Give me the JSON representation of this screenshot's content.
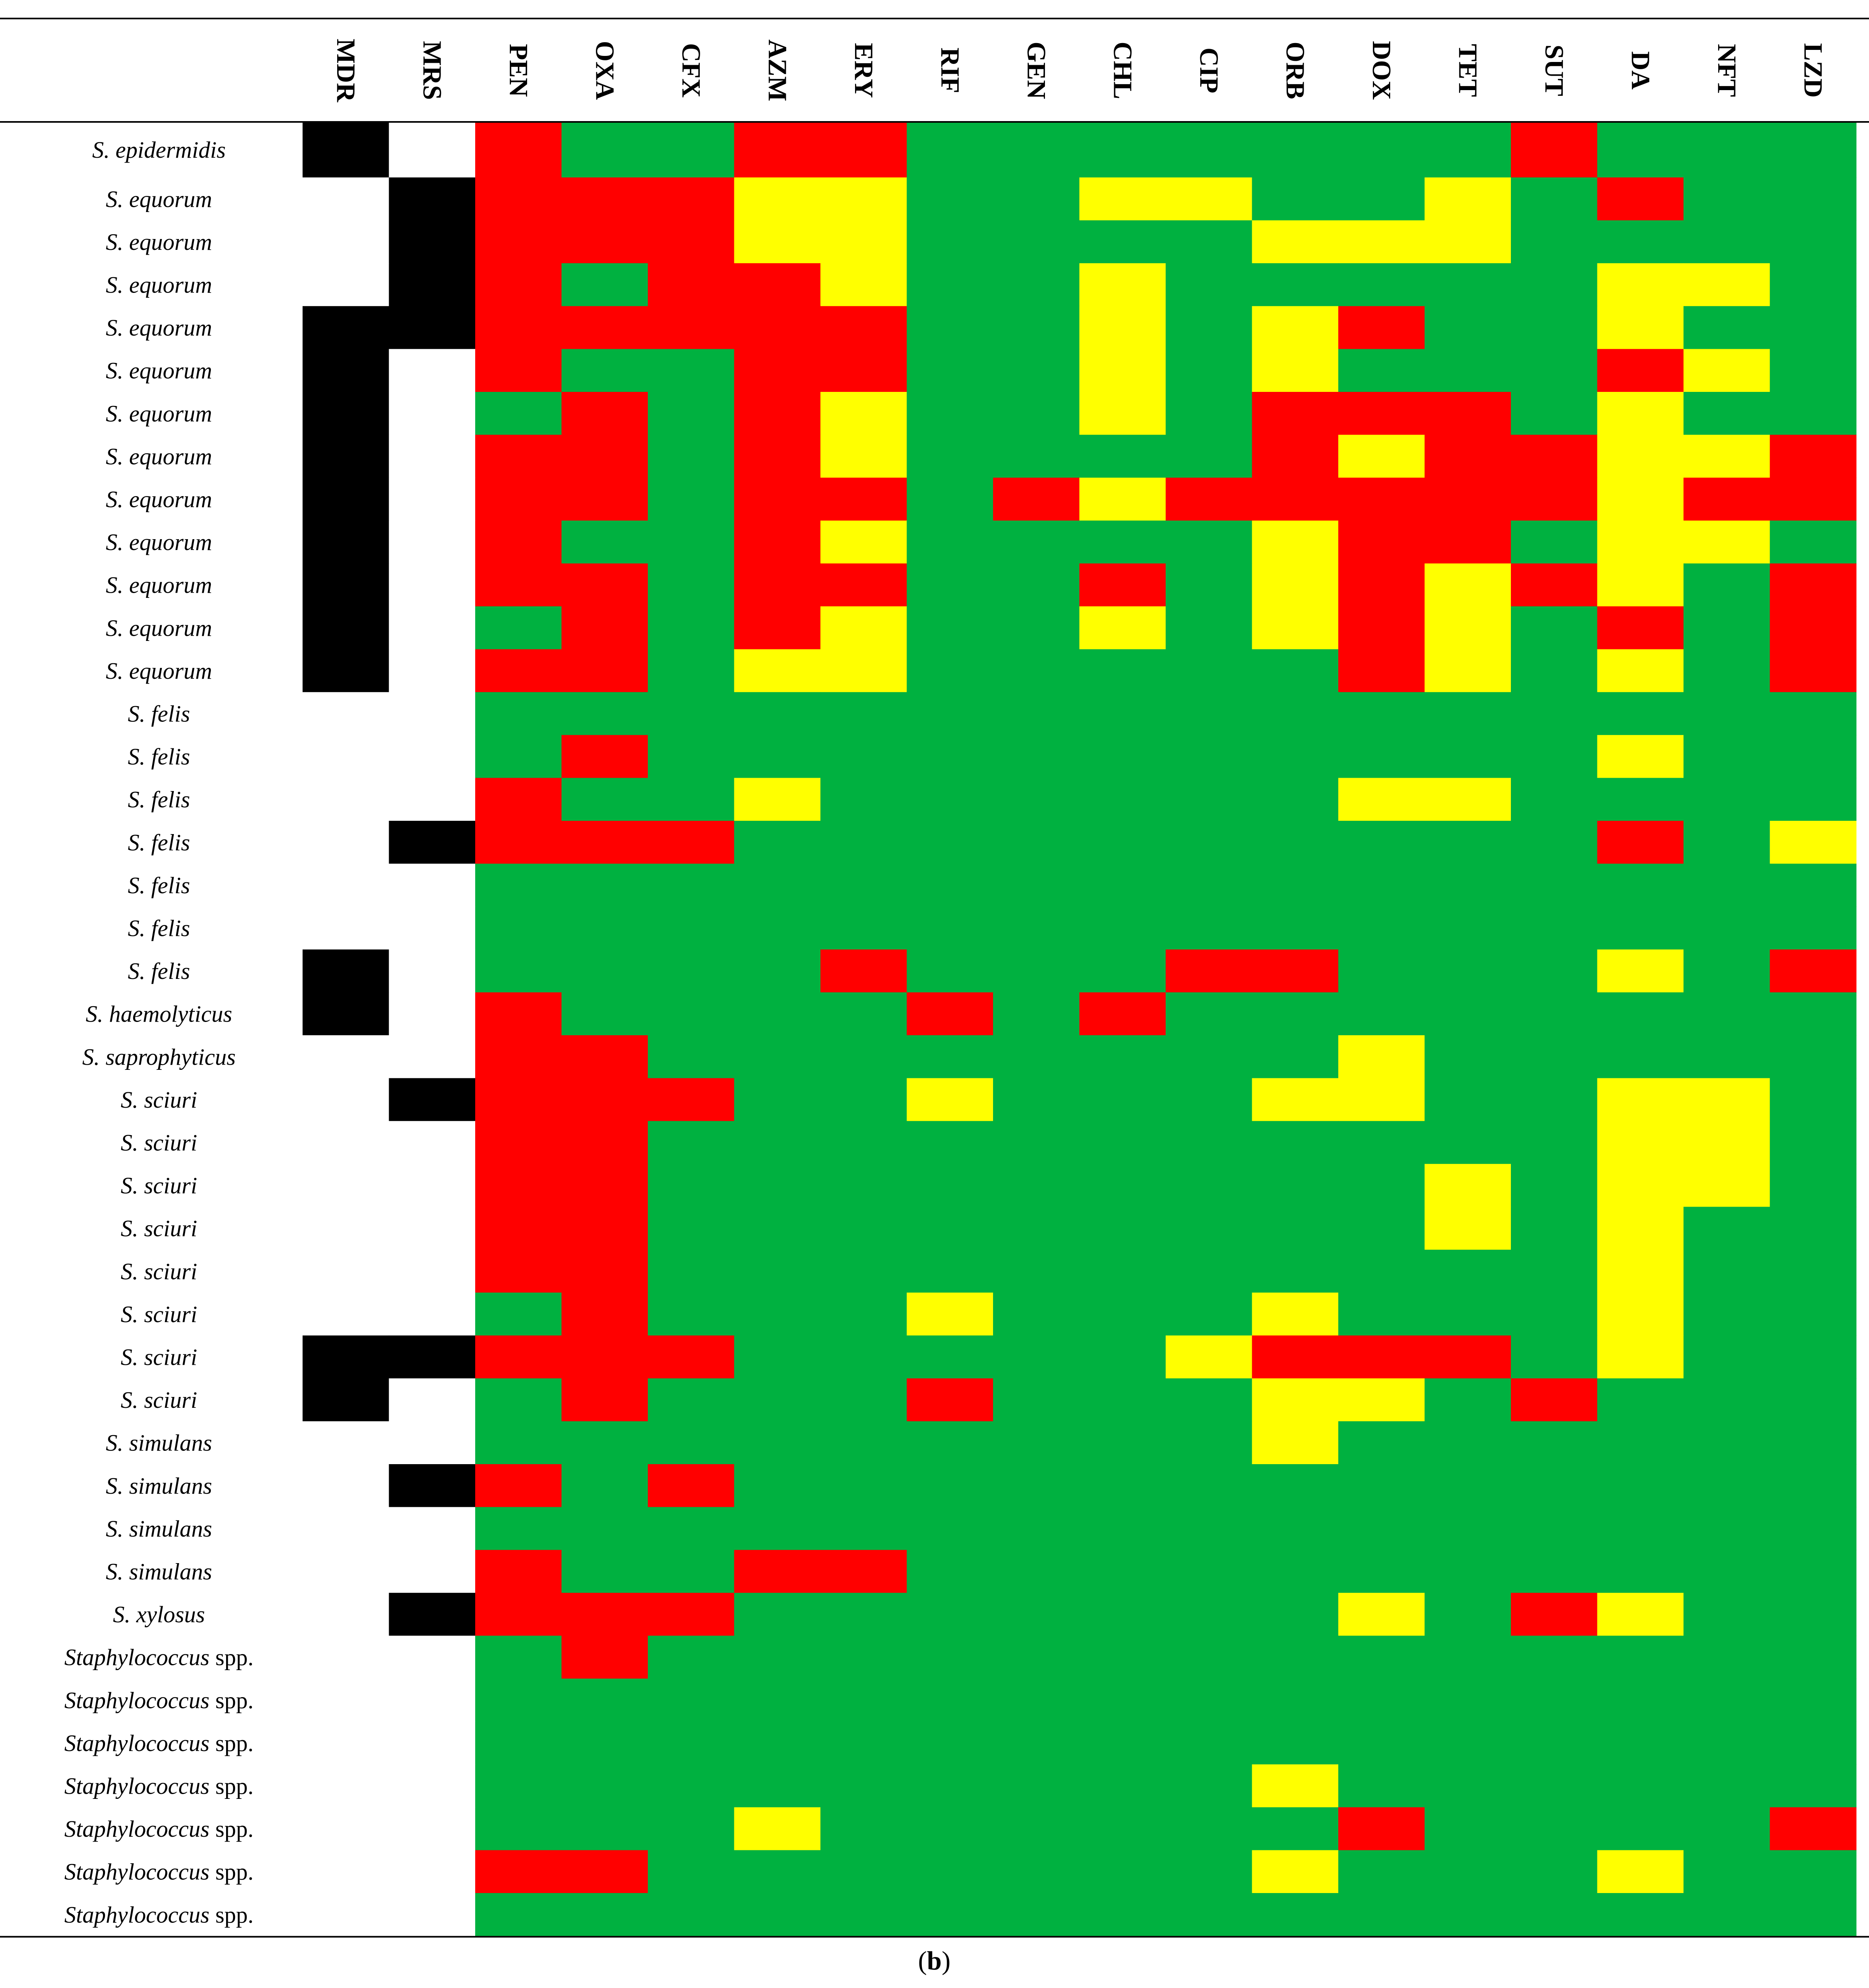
{
  "chart_data": {
    "type": "heatmap",
    "caption": {
      "open": "(",
      "letter": "b",
      "close": ")"
    },
    "columns": [
      "MDR",
      "MRS",
      "PEN",
      "OXA",
      "CFX",
      "AZM",
      "ERY",
      "RIF",
      "GEN",
      "CHL",
      "CIP",
      "ORB",
      "DOX",
      "TET",
      "SUT",
      "DA",
      "NFT",
      "LZD"
    ],
    "rows": [
      {
        "italic": "S. epidermidis",
        "suffix": ""
      },
      {
        "italic": "S. equorum",
        "suffix": ""
      },
      {
        "italic": "S. equorum",
        "suffix": ""
      },
      {
        "italic": "S. equorum",
        "suffix": ""
      },
      {
        "italic": "S. equorum",
        "suffix": ""
      },
      {
        "italic": "S. equorum",
        "suffix": ""
      },
      {
        "italic": "S. equorum",
        "suffix": ""
      },
      {
        "italic": "S. equorum",
        "suffix": ""
      },
      {
        "italic": "S. equorum",
        "suffix": ""
      },
      {
        "italic": "S. equorum",
        "suffix": ""
      },
      {
        "italic": "S. equorum",
        "suffix": ""
      },
      {
        "italic": "S. equorum",
        "suffix": ""
      },
      {
        "italic": "S. equorum",
        "suffix": ""
      },
      {
        "italic": "S. felis",
        "suffix": ""
      },
      {
        "italic": "S. felis",
        "suffix": ""
      },
      {
        "italic": "S. felis",
        "suffix": ""
      },
      {
        "italic": "S. felis",
        "suffix": ""
      },
      {
        "italic": "S. felis",
        "suffix": ""
      },
      {
        "italic": "S. felis",
        "suffix": ""
      },
      {
        "italic": "S. felis",
        "suffix": ""
      },
      {
        "italic": "S. haemolyticus",
        "suffix": ""
      },
      {
        "italic": "S. saprophyticus",
        "suffix": ""
      },
      {
        "italic": "S. sciuri",
        "suffix": ""
      },
      {
        "italic": "S. sciuri",
        "suffix": ""
      },
      {
        "italic": "S. sciuri",
        "suffix": ""
      },
      {
        "italic": "S. sciuri",
        "suffix": ""
      },
      {
        "italic": "S. sciuri",
        "suffix": ""
      },
      {
        "italic": "S. sciuri",
        "suffix": ""
      },
      {
        "italic": "S. sciuri",
        "suffix": ""
      },
      {
        "italic": "S. sciuri",
        "suffix": ""
      },
      {
        "italic": "S. simulans",
        "suffix": ""
      },
      {
        "italic": "S. simulans",
        "suffix": ""
      },
      {
        "italic": "S. simulans",
        "suffix": ""
      },
      {
        "italic": "S. simulans",
        "suffix": ""
      },
      {
        "italic": "S. xylosus",
        "suffix": ""
      },
      {
        "italic": "Staphylococcus",
        "suffix": " spp."
      },
      {
        "italic": "Staphylococcus",
        "suffix": " spp."
      },
      {
        "italic": "Staphylococcus",
        "suffix": " spp."
      },
      {
        "italic": "Staphylococcus",
        "suffix": " spp."
      },
      {
        "italic": "Staphylococcus",
        "suffix": " spp."
      },
      {
        "italic": "Staphylococcus",
        "suffix": " spp."
      },
      {
        "italic": "Staphylococcus",
        "suffix": " spp."
      }
    ],
    "legend_key": {
      "B": "black",
      "W": "white",
      "R": "red",
      "Y": "yellow",
      "G": "green"
    },
    "colors": {
      "B": "#000000",
      "W": "#ffffff",
      "R": "#ff0000",
      "Y": "#ffff00",
      "G": "#00b140"
    },
    "matrix": [
      [
        "B",
        "W",
        "R",
        "G",
        "G",
        "R",
        "R",
        "G",
        "G",
        "G",
        "G",
        "G",
        "G",
        "G",
        "R",
        "G",
        "G",
        "G"
      ],
      [
        "W",
        "B",
        "R",
        "R",
        "R",
        "Y",
        "Y",
        "G",
        "G",
        "Y",
        "Y",
        "G",
        "G",
        "Y",
        "G",
        "R",
        "G",
        "G"
      ],
      [
        "W",
        "B",
        "R",
        "R",
        "R",
        "Y",
        "Y",
        "G",
        "G",
        "G",
        "G",
        "Y",
        "Y",
        "Y",
        "G",
        "G",
        "G",
        "G"
      ],
      [
        "W",
        "B",
        "R",
        "G",
        "R",
        "R",
        "Y",
        "G",
        "G",
        "Y",
        "G",
        "G",
        "G",
        "G",
        "G",
        "Y",
        "Y",
        "G"
      ],
      [
        "B",
        "B",
        "R",
        "R",
        "R",
        "R",
        "R",
        "G",
        "G",
        "Y",
        "G",
        "Y",
        "R",
        "G",
        "G",
        "Y",
        "G",
        "G"
      ],
      [
        "B",
        "W",
        "R",
        "G",
        "G",
        "R",
        "R",
        "G",
        "G",
        "Y",
        "G",
        "Y",
        "G",
        "G",
        "G",
        "R",
        "Y",
        "G"
      ],
      [
        "B",
        "W",
        "G",
        "R",
        "G",
        "R",
        "Y",
        "G",
        "G",
        "Y",
        "G",
        "R",
        "R",
        "R",
        "G",
        "Y",
        "G",
        "G"
      ],
      [
        "B",
        "W",
        "R",
        "R",
        "G",
        "R",
        "Y",
        "G",
        "G",
        "G",
        "G",
        "R",
        "Y",
        "R",
        "R",
        "Y",
        "Y",
        "R"
      ],
      [
        "B",
        "W",
        "R",
        "R",
        "G",
        "R",
        "R",
        "G",
        "R",
        "Y",
        "R",
        "R",
        "R",
        "R",
        "R",
        "Y",
        "R",
        "R"
      ],
      [
        "B",
        "W",
        "R",
        "G",
        "G",
        "R",
        "Y",
        "G",
        "G",
        "G",
        "G",
        "Y",
        "R",
        "R",
        "G",
        "Y",
        "Y",
        "G"
      ],
      [
        "B",
        "W",
        "R",
        "R",
        "G",
        "R",
        "R",
        "G",
        "G",
        "R",
        "G",
        "Y",
        "R",
        "Y",
        "R",
        "Y",
        "G",
        "R"
      ],
      [
        "B",
        "W",
        "G",
        "R",
        "G",
        "R",
        "Y",
        "G",
        "G",
        "Y",
        "G",
        "Y",
        "R",
        "Y",
        "G",
        "R",
        "G",
        "R"
      ],
      [
        "B",
        "W",
        "R",
        "R",
        "G",
        "Y",
        "Y",
        "G",
        "G",
        "G",
        "G",
        "G",
        "R",
        "Y",
        "G",
        "Y",
        "G",
        "R"
      ],
      [
        "W",
        "W",
        "G",
        "G",
        "G",
        "G",
        "G",
        "G",
        "G",
        "G",
        "G",
        "G",
        "G",
        "G",
        "G",
        "G",
        "G",
        "G"
      ],
      [
        "W",
        "W",
        "G",
        "R",
        "G",
        "G",
        "G",
        "G",
        "G",
        "G",
        "G",
        "G",
        "G",
        "G",
        "G",
        "Y",
        "G",
        "G"
      ],
      [
        "W",
        "W",
        "R",
        "G",
        "G",
        "Y",
        "G",
        "G",
        "G",
        "G",
        "G",
        "G",
        "Y",
        "Y",
        "G",
        "G",
        "G",
        "G"
      ],
      [
        "W",
        "B",
        "R",
        "R",
        "R",
        "G",
        "G",
        "G",
        "G",
        "G",
        "G",
        "G",
        "G",
        "G",
        "G",
        "R",
        "G",
        "Y"
      ],
      [
        "W",
        "W",
        "G",
        "G",
        "G",
        "G",
        "G",
        "G",
        "G",
        "G",
        "G",
        "G",
        "G",
        "G",
        "G",
        "G",
        "G",
        "G"
      ],
      [
        "W",
        "W",
        "G",
        "G",
        "G",
        "G",
        "G",
        "G",
        "G",
        "G",
        "G",
        "G",
        "G",
        "G",
        "G",
        "G",
        "G",
        "G"
      ],
      [
        "B",
        "W",
        "G",
        "G",
        "G",
        "G",
        "R",
        "G",
        "G",
        "G",
        "R",
        "R",
        "G",
        "G",
        "G",
        "Y",
        "G",
        "R"
      ],
      [
        "B",
        "W",
        "R",
        "G",
        "G",
        "G",
        "G",
        "R",
        "G",
        "R",
        "G",
        "G",
        "G",
        "G",
        "G",
        "G",
        "G",
        "G"
      ],
      [
        "W",
        "W",
        "R",
        "R",
        "G",
        "G",
        "G",
        "G",
        "G",
        "G",
        "G",
        "G",
        "Y",
        "G",
        "G",
        "G",
        "G",
        "G"
      ],
      [
        "W",
        "B",
        "R",
        "R",
        "R",
        "G",
        "G",
        "Y",
        "G",
        "G",
        "G",
        "Y",
        "Y",
        "G",
        "G",
        "Y",
        "Y",
        "G"
      ],
      [
        "W",
        "W",
        "R",
        "R",
        "G",
        "G",
        "G",
        "G",
        "G",
        "G",
        "G",
        "G",
        "G",
        "G",
        "G",
        "Y",
        "Y",
        "G"
      ],
      [
        "W",
        "W",
        "R",
        "R",
        "G",
        "G",
        "G",
        "G",
        "G",
        "G",
        "G",
        "G",
        "G",
        "Y",
        "G",
        "Y",
        "Y",
        "G"
      ],
      [
        "W",
        "W",
        "R",
        "R",
        "G",
        "G",
        "G",
        "G",
        "G",
        "G",
        "G",
        "G",
        "G",
        "Y",
        "G",
        "Y",
        "G",
        "G"
      ],
      [
        "W",
        "W",
        "R",
        "R",
        "G",
        "G",
        "G",
        "G",
        "G",
        "G",
        "G",
        "G",
        "G",
        "G",
        "G",
        "Y",
        "G",
        "G"
      ],
      [
        "W",
        "W",
        "G",
        "R",
        "G",
        "G",
        "G",
        "Y",
        "G",
        "G",
        "G",
        "Y",
        "G",
        "G",
        "G",
        "Y",
        "G",
        "G"
      ],
      [
        "B",
        "B",
        "R",
        "R",
        "R",
        "G",
        "G",
        "G",
        "G",
        "G",
        "Y",
        "R",
        "R",
        "R",
        "G",
        "Y",
        "G",
        "G"
      ],
      [
        "B",
        "W",
        "G",
        "R",
        "G",
        "G",
        "G",
        "R",
        "G",
        "G",
        "G",
        "Y",
        "Y",
        "G",
        "R",
        "G",
        "G",
        "G"
      ],
      [
        "W",
        "W",
        "G",
        "G",
        "G",
        "G",
        "G",
        "G",
        "G",
        "G",
        "G",
        "Y",
        "G",
        "G",
        "G",
        "G",
        "G",
        "G"
      ],
      [
        "W",
        "B",
        "R",
        "G",
        "R",
        "G",
        "G",
        "G",
        "G",
        "G",
        "G",
        "G",
        "G",
        "G",
        "G",
        "G",
        "G",
        "G"
      ],
      [
        "W",
        "W",
        "G",
        "G",
        "G",
        "G",
        "G",
        "G",
        "G",
        "G",
        "G",
        "G",
        "G",
        "G",
        "G",
        "G",
        "G",
        "G"
      ],
      [
        "W",
        "W",
        "R",
        "G",
        "G",
        "R",
        "R",
        "G",
        "G",
        "G",
        "G",
        "G",
        "G",
        "G",
        "G",
        "G",
        "G",
        "G"
      ],
      [
        "W",
        "B",
        "R",
        "R",
        "R",
        "G",
        "G",
        "G",
        "G",
        "G",
        "G",
        "G",
        "Y",
        "G",
        "R",
        "Y",
        "G",
        "G"
      ],
      [
        "W",
        "W",
        "G",
        "R",
        "G",
        "G",
        "G",
        "G",
        "G",
        "G",
        "G",
        "G",
        "G",
        "G",
        "G",
        "G",
        "G",
        "G"
      ],
      [
        "W",
        "W",
        "G",
        "G",
        "G",
        "G",
        "G",
        "G",
        "G",
        "G",
        "G",
        "G",
        "G",
        "G",
        "G",
        "G",
        "G",
        "G"
      ],
      [
        "W",
        "W",
        "G",
        "G",
        "G",
        "G",
        "G",
        "G",
        "G",
        "G",
        "G",
        "G",
        "G",
        "G",
        "G",
        "G",
        "G",
        "G"
      ],
      [
        "W",
        "W",
        "G",
        "G",
        "G",
        "G",
        "G",
        "G",
        "G",
        "G",
        "G",
        "Y",
        "G",
        "G",
        "G",
        "G",
        "G",
        "G"
      ],
      [
        "W",
        "W",
        "G",
        "G",
        "G",
        "Y",
        "G",
        "G",
        "G",
        "G",
        "G",
        "G",
        "R",
        "G",
        "G",
        "G",
        "G",
        "R"
      ],
      [
        "W",
        "W",
        "R",
        "R",
        "G",
        "G",
        "G",
        "G",
        "G",
        "G",
        "G",
        "Y",
        "G",
        "G",
        "G",
        "Y",
        "G",
        "G"
      ],
      [
        "W",
        "W",
        "G",
        "G",
        "G",
        "G",
        "G",
        "G",
        "G",
        "G",
        "G",
        "G",
        "G",
        "G",
        "G",
        "G",
        "G",
        "G"
      ]
    ]
  }
}
